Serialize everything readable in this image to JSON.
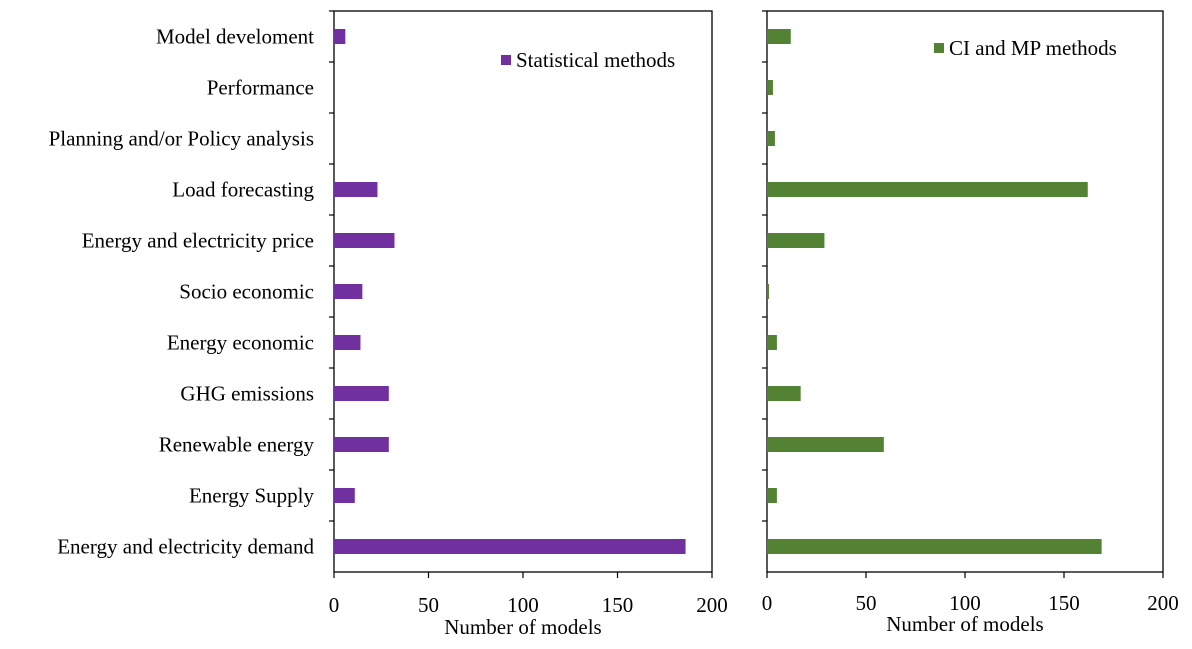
{
  "colors": {
    "statistical": "#7030a0",
    "ci_mp": "#548235",
    "axis": "#000000",
    "background": "#ffffff"
  },
  "chart_data": [
    {
      "type": "bar",
      "orientation": "horizontal",
      "categories": [
        "Model develoment",
        "Performance",
        "Planning and/or Policy analysis",
        "Load forecasting",
        "Energy and electricity price",
        "Socio economic",
        "Energy economic",
        "GHG emissions",
        "Renewable energy",
        "Energy Supply",
        "Energy and electricity demand"
      ],
      "series": [
        {
          "name": "Statistical methods",
          "color": "#7030a0",
          "values": [
            6,
            0,
            0,
            23,
            32,
            15,
            14,
            29,
            29,
            11,
            186
          ]
        }
      ],
      "xlabel": "Number of models",
      "xlim": [
        0,
        200
      ],
      "xticks": [
        "0",
        "50",
        "100",
        "150",
        "200"
      ],
      "grid": false,
      "legend": "top-right"
    },
    {
      "type": "bar",
      "orientation": "horizontal",
      "categories": [
        "Model develoment",
        "Performance",
        "Planning and/or Policy analysis",
        "Load forecasting",
        "Energy and electricity price",
        "Socio economic",
        "Energy economic",
        "GHG emissions",
        "Renewable energy",
        "Energy Supply",
        "Energy and electricity demand"
      ],
      "series": [
        {
          "name": "CI and MP methods",
          "color": "#548235",
          "values": [
            12,
            3,
            4,
            162,
            29,
            1,
            5,
            17,
            59,
            5,
            169
          ]
        }
      ],
      "xlabel": "Number of models",
      "xlim": [
        0,
        200
      ],
      "xticks": [
        "0",
        "50",
        "100",
        "150",
        "200"
      ],
      "grid": false,
      "legend": "top-right"
    }
  ]
}
